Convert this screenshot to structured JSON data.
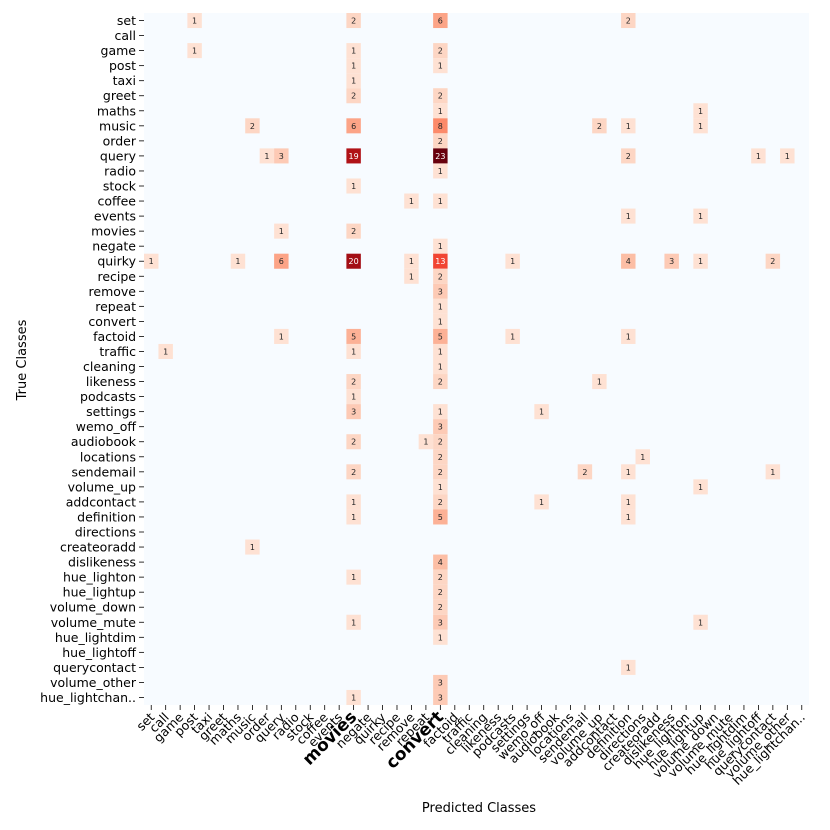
{
  "chart_data": {
    "type": "heatmap",
    "title": "",
    "xlabel": "Predicted Classes",
    "ylabel": "True Classes",
    "colormap": "Reds",
    "background_color": "#f7fbff",
    "highlight_color": "#ff0000",
    "highlighted_x_labels": [
      "movies",
      "convert"
    ],
    "y_categories": [
      "set",
      "call",
      "game",
      "post",
      "taxi",
      "greet",
      "maths",
      "music",
      "order",
      "query",
      "radio",
      "stock",
      "coffee",
      "events",
      "movies",
      "negate",
      "quirky",
      "recipe",
      "remove",
      "repeat",
      "convert",
      "factoid",
      "traffic",
      "cleaning",
      "likeness",
      "podcasts",
      "settings",
      "wemo_off",
      "audiobook",
      "locations",
      "sendemail",
      "volume_up",
      "addcontact",
      "definition",
      "directions",
      "createoradd",
      "dislikeness",
      "hue_lighton",
      "hue_lightup",
      "volume_down",
      "volume_mute",
      "hue_lightdim",
      "hue_lightoff",
      "querycontact",
      "volume_other",
      "hue_lightchan.."
    ],
    "x_categories": [
      "set",
      "call",
      "game",
      "post",
      "taxi",
      "greet",
      "maths",
      "music",
      "order",
      "query",
      "radio",
      "stock",
      "coffee",
      "events",
      "movies",
      "negate",
      "quirky",
      "recipe",
      "remove",
      "repeat",
      "convert",
      "factoid",
      "traffic",
      "cleaning",
      "likeness",
      "podcasts",
      "settings",
      "wemo_off",
      "audiobook",
      "locations",
      "sendemail",
      "volume_up",
      "addcontact",
      "definition",
      "directions",
      "createoradd",
      "dislikeness",
      "hue_lighton",
      "hue_lightup",
      "volume_down",
      "volume_mute",
      "hue_lightdim",
      "hue_lightoff",
      "querycontact",
      "volume_other",
      "hue_lightchan.."
    ],
    "cells": [
      {
        "row": "set",
        "col": "post",
        "value": 1
      },
      {
        "row": "set",
        "col": "movies",
        "value": 2
      },
      {
        "row": "set",
        "col": "convert",
        "value": 6
      },
      {
        "row": "set",
        "col": "definition",
        "value": 2
      },
      {
        "row": "game",
        "col": "post",
        "value": 1
      },
      {
        "row": "game",
        "col": "movies",
        "value": 1
      },
      {
        "row": "game",
        "col": "convert",
        "value": 2
      },
      {
        "row": "post",
        "col": "movies",
        "value": 1
      },
      {
        "row": "post",
        "col": "convert",
        "value": 1
      },
      {
        "row": "taxi",
        "col": "movies",
        "value": 1
      },
      {
        "row": "greet",
        "col": "movies",
        "value": 2
      },
      {
        "row": "greet",
        "col": "convert",
        "value": 2
      },
      {
        "row": "maths",
        "col": "convert",
        "value": 1
      },
      {
        "row": "maths",
        "col": "hue_lightup",
        "value": 1
      },
      {
        "row": "music",
        "col": "music",
        "value": 2
      },
      {
        "row": "music",
        "col": "movies",
        "value": 6
      },
      {
        "row": "music",
        "col": "convert",
        "value": 8
      },
      {
        "row": "music",
        "col": "volume_up",
        "value": 2
      },
      {
        "row": "music",
        "col": "definition",
        "value": 1
      },
      {
        "row": "music",
        "col": "hue_lightup",
        "value": 1
      },
      {
        "row": "order",
        "col": "convert",
        "value": 2
      },
      {
        "row": "query",
        "col": "order",
        "value": 1
      },
      {
        "row": "query",
        "col": "query",
        "value": 3
      },
      {
        "row": "query",
        "col": "movies",
        "value": 19
      },
      {
        "row": "query",
        "col": "convert",
        "value": 23
      },
      {
        "row": "query",
        "col": "definition",
        "value": 2
      },
      {
        "row": "query",
        "col": "hue_lightoff",
        "value": 1
      },
      {
        "row": "query",
        "col": "volume_other",
        "value": 1
      },
      {
        "row": "radio",
        "col": "convert",
        "value": 1
      },
      {
        "row": "stock",
        "col": "movies",
        "value": 1
      },
      {
        "row": "coffee",
        "col": "remove",
        "value": 1
      },
      {
        "row": "coffee",
        "col": "convert",
        "value": 1
      },
      {
        "row": "events",
        "col": "definition",
        "value": 1
      },
      {
        "row": "events",
        "col": "hue_lightup",
        "value": 1
      },
      {
        "row": "movies",
        "col": "query",
        "value": 1
      },
      {
        "row": "movies",
        "col": "movies",
        "value": 2
      },
      {
        "row": "negate",
        "col": "convert",
        "value": 1
      },
      {
        "row": "quirky",
        "col": "set",
        "value": 1
      },
      {
        "row": "quirky",
        "col": "maths",
        "value": 1
      },
      {
        "row": "quirky",
        "col": "query",
        "value": 6
      },
      {
        "row": "quirky",
        "col": "movies",
        "value": 20
      },
      {
        "row": "quirky",
        "col": "remove",
        "value": 1
      },
      {
        "row": "quirky",
        "col": "convert",
        "value": 13
      },
      {
        "row": "quirky",
        "col": "podcasts",
        "value": 1
      },
      {
        "row": "quirky",
        "col": "definition",
        "value": 4
      },
      {
        "row": "quirky",
        "col": "dislikeness",
        "value": 3
      },
      {
        "row": "quirky",
        "col": "hue_lightup",
        "value": 1
      },
      {
        "row": "quirky",
        "col": "querycontact",
        "value": 2
      },
      {
        "row": "recipe",
        "col": "remove",
        "value": 1
      },
      {
        "row": "recipe",
        "col": "convert",
        "value": 2
      },
      {
        "row": "remove",
        "col": "convert",
        "value": 3
      },
      {
        "row": "repeat",
        "col": "convert",
        "value": 1
      },
      {
        "row": "convert",
        "col": "convert",
        "value": 1
      },
      {
        "row": "factoid",
        "col": "query",
        "value": 1
      },
      {
        "row": "factoid",
        "col": "movies",
        "value": 5
      },
      {
        "row": "factoid",
        "col": "convert",
        "value": 5
      },
      {
        "row": "factoid",
        "col": "podcasts",
        "value": 1
      },
      {
        "row": "factoid",
        "col": "definition",
        "value": 1
      },
      {
        "row": "traffic",
        "col": "call",
        "value": 1
      },
      {
        "row": "traffic",
        "col": "movies",
        "value": 1
      },
      {
        "row": "traffic",
        "col": "convert",
        "value": 1
      },
      {
        "row": "cleaning",
        "col": "convert",
        "value": 1
      },
      {
        "row": "likeness",
        "col": "movies",
        "value": 2
      },
      {
        "row": "likeness",
        "col": "convert",
        "value": 2
      },
      {
        "row": "likeness",
        "col": "volume_up",
        "value": 1
      },
      {
        "row": "podcasts",
        "col": "movies",
        "value": 1
      },
      {
        "row": "settings",
        "col": "movies",
        "value": 3
      },
      {
        "row": "settings",
        "col": "convert",
        "value": 1
      },
      {
        "row": "settings",
        "col": "wemo_off",
        "value": 1
      },
      {
        "row": "wemo_off",
        "col": "convert",
        "value": 3
      },
      {
        "row": "audiobook",
        "col": "movies",
        "value": 2
      },
      {
        "row": "audiobook",
        "col": "repeat",
        "value": 1
      },
      {
        "row": "audiobook",
        "col": "convert",
        "value": 2
      },
      {
        "row": "locations",
        "col": "convert",
        "value": 2
      },
      {
        "row": "locations",
        "col": "directions",
        "value": 1
      },
      {
        "row": "sendemail",
        "col": "movies",
        "value": 2
      },
      {
        "row": "sendemail",
        "col": "convert",
        "value": 2
      },
      {
        "row": "sendemail",
        "col": "sendemail",
        "value": 2
      },
      {
        "row": "sendemail",
        "col": "definition",
        "value": 1
      },
      {
        "row": "sendemail",
        "col": "querycontact",
        "value": 1
      },
      {
        "row": "volume_up",
        "col": "convert",
        "value": 1
      },
      {
        "row": "volume_up",
        "col": "hue_lightup",
        "value": 1
      },
      {
        "row": "addcontact",
        "col": "movies",
        "value": 1
      },
      {
        "row": "addcontact",
        "col": "convert",
        "value": 2
      },
      {
        "row": "addcontact",
        "col": "wemo_off",
        "value": 1
      },
      {
        "row": "addcontact",
        "col": "definition",
        "value": 1
      },
      {
        "row": "definition",
        "col": "movies",
        "value": 1
      },
      {
        "row": "definition",
        "col": "convert",
        "value": 5
      },
      {
        "row": "definition",
        "col": "definition",
        "value": 1
      },
      {
        "row": "createoradd",
        "col": "music",
        "value": 1
      },
      {
        "row": "dislikeness",
        "col": "convert",
        "value": 4
      },
      {
        "row": "hue_lighton",
        "col": "movies",
        "value": 1
      },
      {
        "row": "hue_lighton",
        "col": "convert",
        "value": 2
      },
      {
        "row": "hue_lightup",
        "col": "convert",
        "value": 2
      },
      {
        "row": "volume_down",
        "col": "convert",
        "value": 2
      },
      {
        "row": "volume_mute",
        "col": "movies",
        "value": 1
      },
      {
        "row": "volume_mute",
        "col": "convert",
        "value": 3
      },
      {
        "row": "volume_mute",
        "col": "hue_lightup",
        "value": 1
      },
      {
        "row": "hue_lightdim",
        "col": "convert",
        "value": 1
      },
      {
        "row": "querycontact",
        "col": "definition",
        "value": 1
      },
      {
        "row": "volume_other",
        "col": "convert",
        "value": 3
      },
      {
        "row": "hue_lightchan..",
        "col": "movies",
        "value": 1
      },
      {
        "row": "hue_lightchan..",
        "col": "convert",
        "value": 3
      }
    ]
  }
}
